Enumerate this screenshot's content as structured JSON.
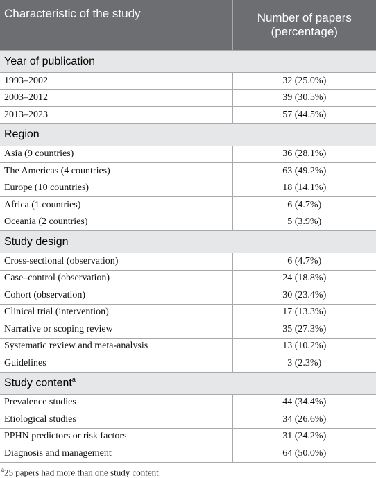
{
  "header": [
    "Characteristic of the study",
    "Number of papers (percentage)"
  ],
  "sections": [
    {
      "title": "Year of publication",
      "rows": [
        [
          "1993–2002",
          "32 (25.0%)"
        ],
        [
          "2003–2012",
          "39 (30.5%)"
        ],
        [
          "2013–2023",
          "57 (44.5%)"
        ]
      ]
    },
    {
      "title": "Region",
      "rows": [
        [
          "Asia (9 countries)",
          "36 (28.1%)"
        ],
        [
          "The Americas (4 countries)",
          "63 (49.2%)"
        ],
        [
          "Europe (10 countries)",
          "18 (14.1%)"
        ],
        [
          "Africa (1 countries)",
          "6 (4.7%)"
        ],
        [
          "Oceania (2 countries)",
          "5 (3.9%)"
        ]
      ]
    },
    {
      "title": "Study design",
      "rows": [
        [
          "Cross-sectional (observation)",
          "6 (4.7%)"
        ],
        [
          "Case–control (observation)",
          "24 (18.8%)"
        ],
        [
          "Cohort (observation)",
          "30 (23.4%)"
        ],
        [
          "Clinical trial (intervention)",
          "17 (13.3%)"
        ],
        [
          "Narrative or scoping review",
          "35 (27.3%)"
        ],
        [
          "Systematic review and meta-analysis",
          "13 (10.2%)"
        ],
        [
          "Guidelines",
          "3 (2.3%)"
        ]
      ]
    },
    {
      "title": "Study content",
      "note": "a",
      "rows": [
        [
          "Prevalence studies",
          "44 (34.4%)"
        ],
        [
          "Etiological studies",
          "34 (26.6%)"
        ],
        [
          "PPHN predictors or risk factors",
          "31 (24.2%)"
        ],
        [
          "Diagnosis and management",
          "64 (50.0%)"
        ]
      ]
    }
  ],
  "footnote": {
    "marker": "a",
    "text": "25 papers had more than one study content."
  }
}
